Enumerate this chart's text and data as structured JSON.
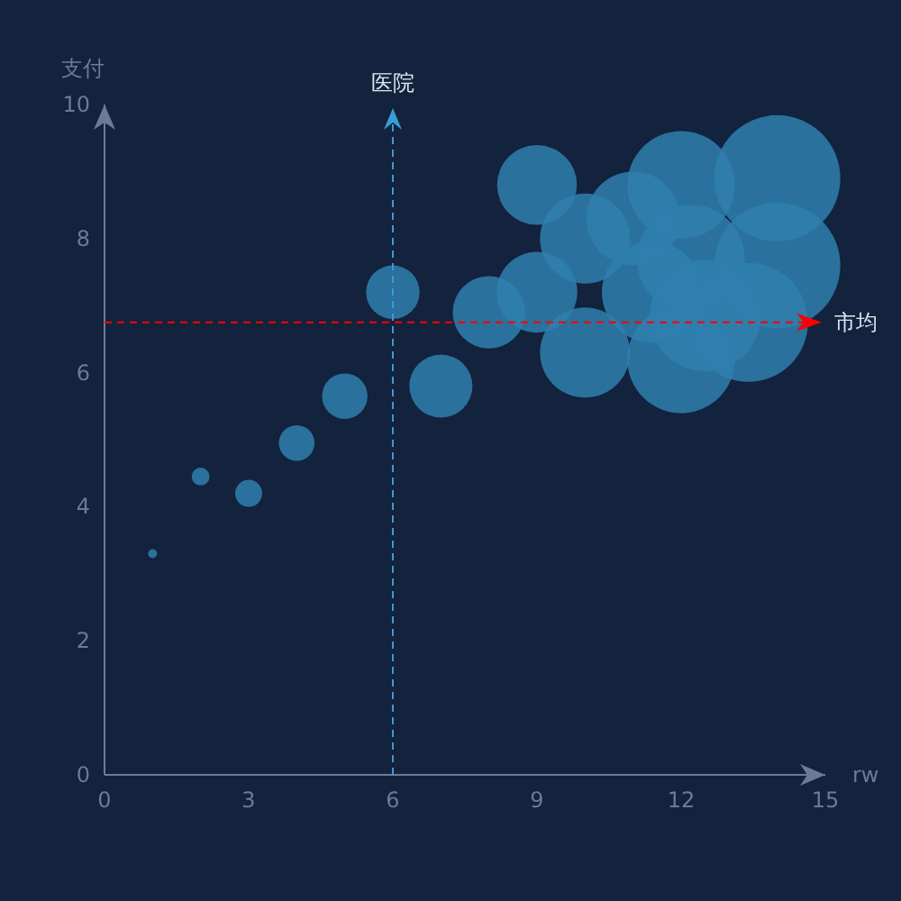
{
  "chart_data": {
    "type": "bubble",
    "xlabel": "rw",
    "ylabel": "支付",
    "color": "#2f7fae",
    "x": [
      1,
      2,
      3,
      4,
      5,
      7,
      6,
      8,
      9,
      9,
      10,
      10,
      11,
      12,
      12,
      14,
      14,
      13.4,
      12.5,
      12.2,
      11.4
    ],
    "values": [
      3.3,
      4.45,
      4.2,
      4.95,
      5.65,
      5.8,
      7.2,
      6.9,
      7.2,
      8.8,
      8.0,
      6.3,
      8.3,
      8.8,
      6.2,
      8.9,
      7.6,
      6.75,
      6.85,
      7.7,
      7.2
    ],
    "sizes": [
      0.005,
      0.02,
      0.046,
      0.08,
      0.13,
      0.25,
      0.18,
      0.33,
      0.41,
      0.4,
      0.51,
      0.51,
      0.55,
      0.73,
      0.73,
      1,
      1,
      0.89,
      0.78,
      0.73,
      0.64
    ],
    "xlim": [
      0,
      15
    ],
    "ylim": [
      0,
      10
    ],
    "xticks": [
      0,
      3,
      6,
      9,
      12,
      15
    ],
    "yticks": [
      0,
      2,
      4,
      6,
      8,
      10
    ],
    "grid": false,
    "ref_lines": [
      {
        "axis": "x",
        "value": 6,
        "label": "医院",
        "color": "#3a9bd5",
        "line_style": "dashed"
      },
      {
        "axis": "y",
        "value": 6.75,
        "label": "市均",
        "color": "#ff0000",
        "line_style": "dashed"
      }
    ]
  }
}
